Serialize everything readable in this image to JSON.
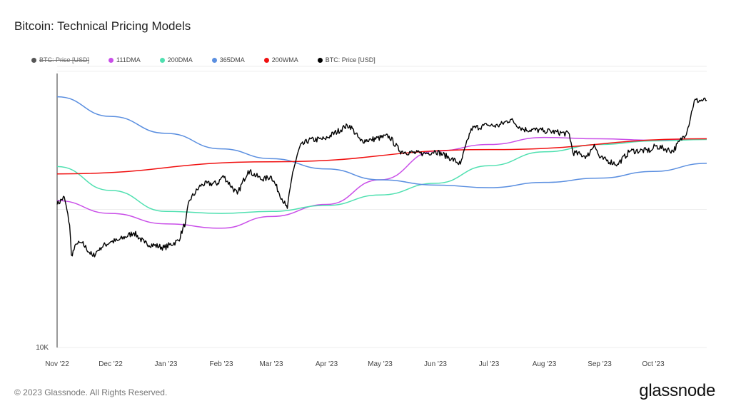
{
  "title": "Bitcoin: Technical Pricing Models",
  "legend": [
    {
      "label": "BTC: Price [USD]",
      "color": "#555555",
      "hidden": true
    },
    {
      "label": "111DMA",
      "color": "#c94ee8",
      "hidden": false
    },
    {
      "label": "200DMA",
      "color": "#4fe0b0",
      "hidden": false
    },
    {
      "label": "365DMA",
      "color": "#5b8fe0",
      "hidden": false
    },
    {
      "label": "200WMA",
      "color": "#f01010",
      "hidden": false
    },
    {
      "label": "BTC: Price [USD]",
      "color": "#000000",
      "hidden": false
    }
  ],
  "footer": "© 2023 Glassnode. All Rights Reserved.",
  "logo": "glassnode",
  "chart_data": {
    "type": "line",
    "title": "Bitcoin: Technical Pricing Models",
    "yscale": "log",
    "ylim": [
      10000,
      41000
    ],
    "xlim": [
      "2022-11-01",
      "2023-10-31"
    ],
    "grid": true,
    "legend_position": "top-left",
    "y_tick_labels": [
      {
        "value": 10000,
        "label": "10K"
      }
    ],
    "y_gridlines": [
      20000,
      40000
    ],
    "x_tick_labels": [
      {
        "date": "2022-11-01",
        "label": "Nov '22"
      },
      {
        "date": "2022-12-01",
        "label": "Dec '22"
      },
      {
        "date": "2023-01-01",
        "label": "Jan '23"
      },
      {
        "date": "2023-02-01",
        "label": "Feb '23"
      },
      {
        "date": "2023-03-01",
        "label": "Mar '23"
      },
      {
        "date": "2023-04-01",
        "label": "Apr '23"
      },
      {
        "date": "2023-05-01",
        "label": "May '23"
      },
      {
        "date": "2023-06-01",
        "label": "Jun '23"
      },
      {
        "date": "2023-07-01",
        "label": "Jul '23"
      },
      {
        "date": "2023-08-01",
        "label": "Aug '23"
      },
      {
        "date": "2023-09-01",
        "label": "Sep '23"
      },
      {
        "date": "2023-10-01",
        "label": "Oct '23"
      }
    ],
    "series": [
      {
        "name": "111DMA",
        "color": "#c94ee8",
        "points": [
          [
            "2022-11-01",
            20900
          ],
          [
            "2022-12-01",
            19600
          ],
          [
            "2023-01-01",
            18600
          ],
          [
            "2023-02-01",
            18200
          ],
          [
            "2023-03-01",
            19300
          ],
          [
            "2023-04-01",
            20500
          ],
          [
            "2023-05-01",
            23200
          ],
          [
            "2023-06-01",
            26800
          ],
          [
            "2023-07-01",
            27700
          ],
          [
            "2023-08-01",
            28700
          ],
          [
            "2023-09-01",
            28500
          ],
          [
            "2023-10-01",
            28300
          ],
          [
            "2023-10-31",
            28500
          ]
        ]
      },
      {
        "name": "200DMA",
        "color": "#4fe0b0",
        "points": [
          [
            "2022-11-01",
            24800
          ],
          [
            "2022-12-01",
            22000
          ],
          [
            "2023-01-01",
            19800
          ],
          [
            "2023-02-01",
            19600
          ],
          [
            "2023-03-01",
            19800
          ],
          [
            "2023-04-01",
            20400
          ],
          [
            "2023-05-01",
            21500
          ],
          [
            "2023-06-01",
            22800
          ],
          [
            "2023-07-01",
            24900
          ],
          [
            "2023-08-01",
            26700
          ],
          [
            "2023-09-01",
            27700
          ],
          [
            "2023-10-01",
            28200
          ],
          [
            "2023-10-31",
            28400
          ]
        ]
      },
      {
        "name": "365DMA",
        "color": "#5b8fe0",
        "points": [
          [
            "2022-11-01",
            35200
          ],
          [
            "2022-12-01",
            31900
          ],
          [
            "2023-01-01",
            29300
          ],
          [
            "2023-02-01",
            27100
          ],
          [
            "2023-03-01",
            25800
          ],
          [
            "2023-04-01",
            24500
          ],
          [
            "2023-05-01",
            23200
          ],
          [
            "2023-06-01",
            22600
          ],
          [
            "2023-07-01",
            22300
          ],
          [
            "2023-08-01",
            22900
          ],
          [
            "2023-09-01",
            23400
          ],
          [
            "2023-10-01",
            24200
          ],
          [
            "2023-10-31",
            25200
          ]
        ]
      },
      {
        "name": "200WMA",
        "color": "#f01010",
        "points": [
          [
            "2022-11-01",
            23900
          ],
          [
            "2023-03-01",
            25400
          ],
          [
            "2023-07-01",
            27000
          ],
          [
            "2023-10-31",
            28500
          ]
        ]
      },
      {
        "name": "BTC: Price [USD]",
        "color": "#000000",
        "points": [
          [
            "2022-11-01",
            20500
          ],
          [
            "2022-11-05",
            21300
          ],
          [
            "2022-11-08",
            18500
          ],
          [
            "2022-11-09",
            15900
          ],
          [
            "2022-11-12",
            16800
          ],
          [
            "2022-11-15",
            16900
          ],
          [
            "2022-11-21",
            15800
          ],
          [
            "2022-11-25",
            16500
          ],
          [
            "2022-12-01",
            17000
          ],
          [
            "2022-12-05",
            17100
          ],
          [
            "2022-12-14",
            17800
          ],
          [
            "2022-12-20",
            16900
          ],
          [
            "2022-12-31",
            16500
          ],
          [
            "2023-01-08",
            17100
          ],
          [
            "2023-01-12",
            18800
          ],
          [
            "2023-01-14",
            20900
          ],
          [
            "2023-01-21",
            22700
          ],
          [
            "2023-01-30",
            22800
          ],
          [
            "2023-02-02",
            23700
          ],
          [
            "2023-02-10",
            21600
          ],
          [
            "2023-02-16",
            24300
          ],
          [
            "2023-02-24",
            23200
          ],
          [
            "2023-03-01",
            23600
          ],
          [
            "2023-03-09",
            20400
          ],
          [
            "2023-03-10",
            20100
          ],
          [
            "2023-03-13",
            24100
          ],
          [
            "2023-03-17",
            27400
          ],
          [
            "2023-03-22",
            28300
          ],
          [
            "2023-03-31",
            28500
          ],
          [
            "2023-04-11",
            30200
          ],
          [
            "2023-04-14",
            30500
          ],
          [
            "2023-04-20",
            28200
          ],
          [
            "2023-04-26",
            28400
          ],
          [
            "2023-05-06",
            28900
          ],
          [
            "2023-05-12",
            26800
          ],
          [
            "2023-05-25",
            26400
          ],
          [
            "2023-06-01",
            26800
          ],
          [
            "2023-06-10",
            25800
          ],
          [
            "2023-06-15",
            25100
          ],
          [
            "2023-06-21",
            30000
          ],
          [
            "2023-06-30",
            30500
          ],
          [
            "2023-07-06",
            30400
          ],
          [
            "2023-07-13",
            31400
          ],
          [
            "2023-07-20",
            29900
          ],
          [
            "2023-08-01",
            29700
          ],
          [
            "2023-08-15",
            29200
          ],
          [
            "2023-08-17",
            26600
          ],
          [
            "2023-08-25",
            26100
          ],
          [
            "2023-08-29",
            27700
          ],
          [
            "2023-09-01",
            25900
          ],
          [
            "2023-09-11",
            25100
          ],
          [
            "2023-09-18",
            26800
          ],
          [
            "2023-09-30",
            26900
          ],
          [
            "2023-10-02",
            27500
          ],
          [
            "2023-10-12",
            26800
          ],
          [
            "2023-10-20",
            29600
          ],
          [
            "2023-10-24",
            34500
          ],
          [
            "2023-10-31",
            34600
          ]
        ]
      }
    ]
  }
}
